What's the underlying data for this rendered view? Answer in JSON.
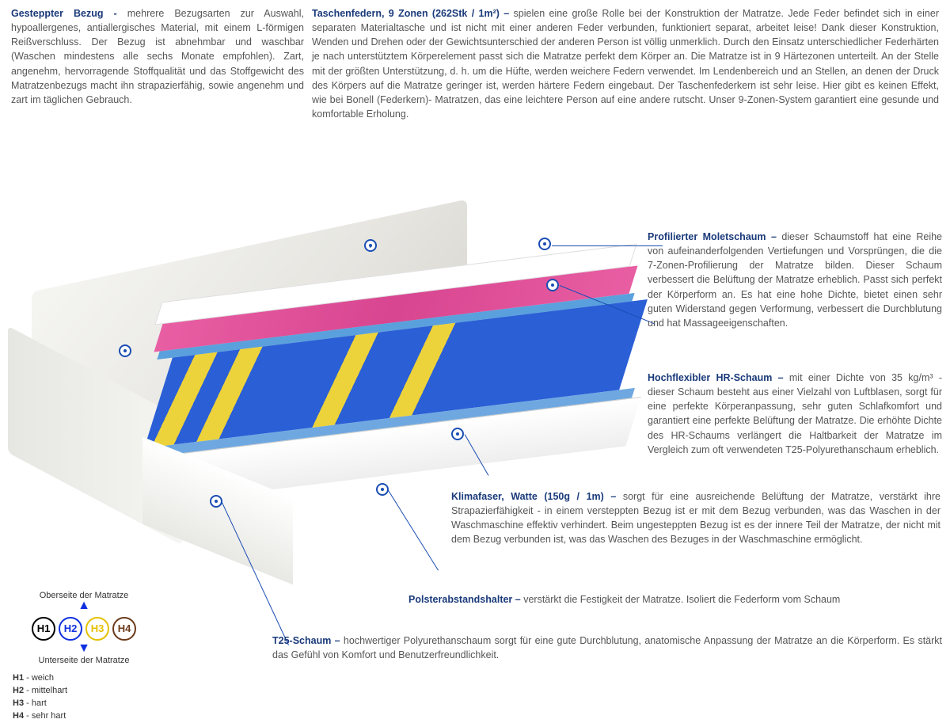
{
  "colors": {
    "title": "#1a3a7a",
    "body": "#555555",
    "marker_border": "#1a4db3",
    "spring_blue": "#2b5fd6",
    "spring_yellow": "#ecd23b",
    "foam_pink": "#e85ea3",
    "plate_blue": "#5aa0dd"
  },
  "top_left": {
    "title": "Gesteppter Bezug - ",
    "body": "mehrere Bezugsarten zur Auswahl, hypoallergenes, antiallergisches Material, mit einem L-förmigen Reißverschluss. Der Bezug ist abnehmbar und waschbar (Waschen mindestens alle sechs Monate empfohlen). Zart, angenehm, hervorragende Stoffqualität und das Stoffgewicht des Matratzenbezugs macht ihn strapazierfähig, sowie angenehm und zart im täglichen Gebrauch."
  },
  "top_right": {
    "title": "Taschenfedern, 9 Zonen (262Stk / 1m²) – ",
    "body": "spielen eine große Rolle bei der Konstruktion der Matratze. Jede Feder befindet sich in einer separaten Materialtasche und ist nicht mit einer anderen Feder verbunden, funktioniert separat, arbeitet leise! Dank dieser Konstruktion, Wenden und Drehen oder der Gewichtsunterschied der anderen Person ist völlig unmerklich. Durch den Einsatz unterschiedlicher Federhärten je nach unterstütztem Körperelement passt sich die Matratze perfekt dem Körper an. Die Matratze ist in 9 Härtezonen unterteilt. An der Stelle mit der größten Unterstützung, d. h. um die Hüfte, werden weichere Federn verwendet. Im Lendenbereich und an Stellen, an denen der Druck des Körpers auf die Matratze geringer ist, werden härtere Federn eingebaut. Der Taschenfederkern ist sehr leise. Hier gibt es keinen Effekt, wie bei Bonell (Federkern)- Matratzen, das eine leichtere Person auf eine andere rutscht. Unser 9-Zonen-System garantiert eine gesunde und komfortable Erholung."
  },
  "right1": {
    "title": "Profilierter Moletschaum – ",
    "body": "dieser Schaumstoff hat eine Reihe von aufeinanderfolgenden Vertiefungen und Vorsprüngen, die die 7-Zonen-Profilierung der Matratze bilden. Dieser Schaum verbessert die Belüftung der Matratze erheblich. Passt sich perfekt der Körperform an. Es hat eine hohe Dichte, bietet einen sehr guten Widerstand gegen Verformung, verbessert die Durchblutung und hat Massageeigenschaften."
  },
  "right2": {
    "title": "Hochflexibler HR-Schaum – ",
    "body": "mit einer Dichte von 35 kg/m³ - dieser Schaum besteht aus einer Vielzahl von Luftblasen, sorgt für eine perfekte Körperanpassung, sehr guten Schlafkomfort und garantiert eine perfekte Belüftung der Matratze. Die erhöhte Dichte des HR-Schaums verlängert die Haltbarkeit der Matratze im Vergleich zum oft verwendeten T25-Polyurethanschaum erheblich."
  },
  "right3": {
    "title": "Klimafaser, Watte (150g / 1m) – ",
    "body": "sorgt für eine ausreichende Belüftung der Matratze, verstärkt ihre Strapazierfähigkeit - in einem versteppten Bezug ist er mit dem Bezug verbunden, was das Waschen in der Waschmaschine effektiv verhindert. Beim ungesteppten Bezug ist es der innere Teil der Matratze, der nicht mit dem Bezug verbunden ist, was das Waschen des Bezuges in der Waschmaschine ermöglicht."
  },
  "right4": {
    "title": "Polsterabstandshalter – ",
    "body": "verstärkt die Festigkeit der Matratze. Isoliert die Federform vom Schaum"
  },
  "right5": {
    "title": "T25-Schaum – ",
    "body": "hochwertiger Polyurethanschaum sorgt für eine gute Durchblutung, anatomische Anpassung der Matratze an die Körperform. Es stärkt das Gefühl von Komfort und Benutzerfreundlichkeit."
  },
  "legend": {
    "top_label": "Oberseite der Matratze",
    "bottom_label": "Unterseite der Matratze",
    "items": [
      {
        "code": "H1",
        "color": "#000000",
        "label": "weich"
      },
      {
        "code": "H2",
        "color": "#1030e0",
        "label": "mittelhart"
      },
      {
        "code": "H3",
        "color": "#e5c100",
        "label": "hart"
      },
      {
        "code": "H4",
        "color": "#6b3a1a",
        "label": "sehr hart"
      }
    ]
  }
}
